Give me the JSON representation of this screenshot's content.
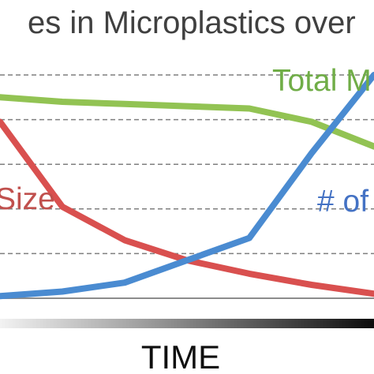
{
  "chart_data": {
    "type": "line",
    "title": "es in Microplastics over",
    "xlabel": "TIME",
    "ylabel": "",
    "x": [
      0,
      1,
      2,
      3,
      4,
      5,
      6
    ],
    "ylim": [
      0,
      10
    ],
    "grid": true,
    "series": [
      {
        "name": "Total M",
        "color": "#92c353",
        "values": [
          9.0,
          8.8,
          8.7,
          8.6,
          8.5,
          7.9,
          6.8
        ]
      },
      {
        "name": "Size",
        "color": "#d9504f",
        "values": [
          7.9,
          4.1,
          2.6,
          1.7,
          1.1,
          0.6,
          0.2
        ]
      },
      {
        "name": "# of",
        "color": "#4a8bd1",
        "values": [
          0.1,
          0.3,
          0.7,
          1.7,
          2.7,
          6.5,
          10.0
        ]
      }
    ],
    "series_labels": {
      "total": "Total M",
      "size": "Size",
      "count": "# of"
    }
  }
}
